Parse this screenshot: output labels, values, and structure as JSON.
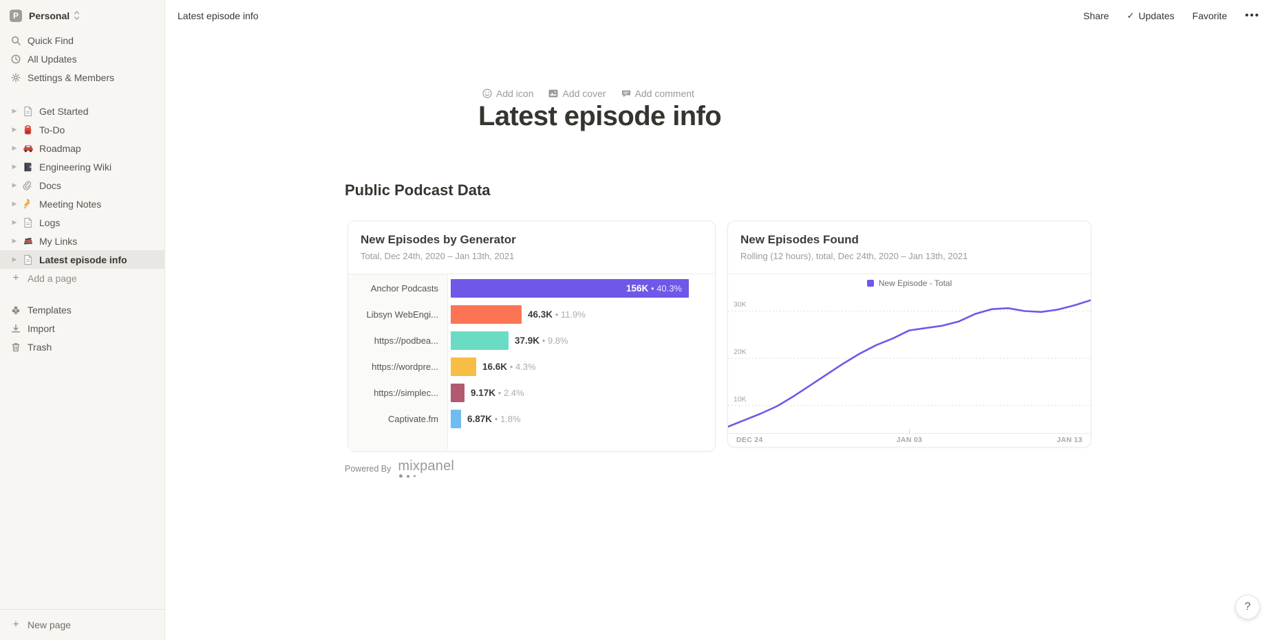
{
  "workspace": {
    "initial": "P",
    "name": "Personal"
  },
  "sidebar": {
    "menu": [
      {
        "label": "Quick Find",
        "icon": "search-icon"
      },
      {
        "label": "All Updates",
        "icon": "clock-icon"
      },
      {
        "label": "Settings & Members",
        "icon": "gear-icon"
      }
    ],
    "pages": [
      {
        "label": "Get Started",
        "icon": "page-icon",
        "selected": false
      },
      {
        "label": "To-Do",
        "icon": "backpack-icon",
        "selected": false
      },
      {
        "label": "Roadmap",
        "icon": "car-icon",
        "selected": false
      },
      {
        "label": "Engineering Wiki",
        "icon": "notebook-icon",
        "selected": false
      },
      {
        "label": "Docs",
        "icon": "paperclip-icon",
        "selected": false
      },
      {
        "label": "Meeting Notes",
        "icon": "pencil-icon",
        "selected": false
      },
      {
        "label": "Logs",
        "icon": "page-icon",
        "selected": false
      },
      {
        "label": "My Links",
        "icon": "books-icon",
        "selected": false
      },
      {
        "label": "Latest episode info",
        "icon": "page-icon",
        "selected": true
      }
    ],
    "add_page_label": "Add a page",
    "footer_items": [
      {
        "label": "Templates",
        "icon": "templates-icon"
      },
      {
        "label": "Import",
        "icon": "import-icon"
      },
      {
        "label": "Trash",
        "icon": "trash-icon"
      }
    ],
    "new_page_label": "New page"
  },
  "topbar": {
    "breadcrumb": "Latest episode info",
    "share_label": "Share",
    "updates_label": "Updates",
    "favorite_label": "Favorite",
    "more_label": "•••"
  },
  "page": {
    "add_icon_label": "Add icon",
    "add_cover_label": "Add cover",
    "add_comment_label": "Add comment",
    "title": "Latest episode info",
    "section_heading": "Public Podcast Data",
    "powered_by_label": "Powered By",
    "powered_by_brand": "mixpanel",
    "help_label": "?"
  },
  "chart_data": [
    {
      "type": "bar",
      "orientation": "horizontal",
      "title": "New Episodes by Generator",
      "subtitle": "Total, Dec 24th, 2020 – Jan 13th, 2021",
      "categories": [
        "Anchor Podcasts",
        "Libsyn WebEngi...",
        "https://podbea...",
        "https://wordpre...",
        "https://simplec...",
        "Captivate.fm"
      ],
      "values": [
        156000,
        46300,
        37900,
        16600,
        9170,
        6870
      ],
      "value_labels": [
        "156K",
        "46.3K",
        "37.9K",
        "16.6K",
        "9.17K",
        "6.87K"
      ],
      "pct_labels": [
        "40.3%",
        "11.9%",
        "9.8%",
        "4.3%",
        "2.4%",
        "1.8%"
      ],
      "colors": [
        "#6E58E8",
        "#FB7555",
        "#6BDCC4",
        "#F7BD45",
        "#B15A70",
        "#70BBEF"
      ],
      "xmax": 156000,
      "first_label_inside": true
    },
    {
      "type": "line",
      "title": "New Episodes Found",
      "subtitle": "Rolling (12 hours), total, Dec 24th, 2020 – Jan 13th, 2021",
      "legend": [
        {
          "name": "New Episode - Total",
          "color": "#6E58E8"
        }
      ],
      "x_tick_labels": [
        "DEC 24",
        "JAN 03",
        "JAN 13"
      ],
      "y_gridlines": [
        10,
        20,
        30
      ],
      "y_gridline_labels": [
        "10K",
        "20K",
        "30K"
      ],
      "ylim_k": [
        4,
        34
      ],
      "values_k": [
        5.5,
        6.9,
        8.3,
        9.9,
        12.0,
        14.3,
        16.6,
        18.9,
        21.0,
        22.8,
        24.2,
        25.9,
        26.4,
        26.9,
        27.8,
        29.4,
        30.4,
        30.6,
        30.0,
        29.8,
        30.3,
        31.2,
        32.3
      ],
      "line_color": "#6E58E8",
      "grid": true,
      "legend_position": "top-center"
    }
  ]
}
